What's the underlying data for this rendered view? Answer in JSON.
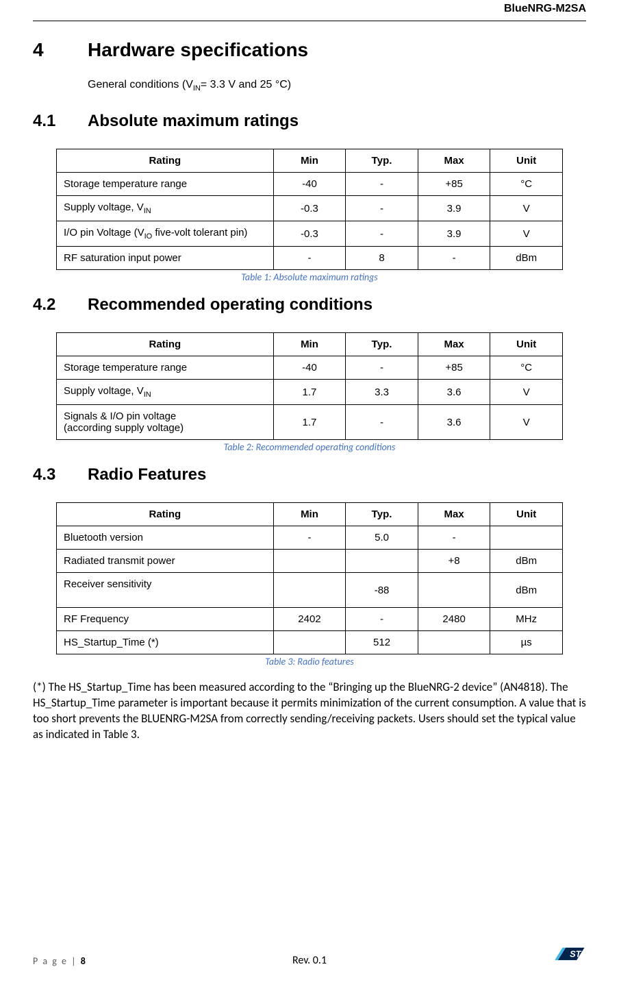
{
  "header": {
    "product": "BlueNRG-M2SA"
  },
  "section4": {
    "num": "4",
    "title": "Hardware specifications",
    "intro_prefix": "General conditions (V",
    "intro_sub": "IN",
    "intro_suffix": "= 3.3 V and 25 °C)"
  },
  "section41": {
    "num": "4.1",
    "title": "Absolute maximum ratings",
    "table": {
      "columns": [
        "Rating",
        "Min",
        "Typ.",
        "Max",
        "Unit"
      ],
      "rows": [
        {
          "rating": "Storage temperature range",
          "min": "-40",
          "typ": "-",
          "max": "+85",
          "unit": "°C"
        },
        {
          "rating_html": "Supply voltage, V<sub>IN</sub>",
          "min": "-0.3",
          "typ": "-",
          "max": "3.9",
          "unit": "V"
        },
        {
          "rating_html": "I/O pin Voltage (V<sub>IO</sub> five-volt tolerant pin)",
          "min": "-0.3",
          "typ": "-",
          "max": "3.9",
          "unit": "V"
        },
        {
          "rating": "RF saturation input power",
          "min": "-",
          "typ": "8",
          "max": "-",
          "unit": "dBm"
        }
      ],
      "caption": "Table 1: Absolute maximum ratings"
    }
  },
  "section42": {
    "num": "4.2",
    "title": "Recommended operating conditions",
    "table": {
      "columns": [
        "Rating",
        "Min",
        "Typ.",
        "Max",
        "Unit"
      ],
      "rows": [
        {
          "rating": "Storage temperature range",
          "min": "-40",
          "typ": "-",
          "max": "+85",
          "unit": "°C"
        },
        {
          "rating_html": "Supply voltage, V<sub>IN</sub>",
          "min": "1.7",
          "typ": "3.3",
          "max": "3.6",
          "unit": "V"
        },
        {
          "rating_html": "Signals & I/O pin voltage<br>(according supply voltage)",
          "min": "1.7",
          "typ": "-",
          "max": "3.6",
          "unit": "V"
        }
      ],
      "caption": "Table 2: Recommended operating conditions"
    }
  },
  "section43": {
    "num": "4.3",
    "title": "Radio Features",
    "table": {
      "columns": [
        "Rating",
        "Min",
        "Typ.",
        "Max",
        "Unit"
      ],
      "rows": [
        {
          "rating": "Bluetooth version",
          "min": "-",
          "typ": "5.0",
          "max": "-",
          "unit": ""
        },
        {
          "rating": "Radiated transmit power",
          "min": "",
          "typ": "",
          "max": "+8",
          "unit": "dBm"
        },
        {
          "rating_html": "Receiver sensitivity<br>&nbsp;",
          "min": "",
          "typ": "-88",
          "max": "",
          "unit": "dBm"
        },
        {
          "rating": "RF Frequency",
          "min": "2402",
          "typ": "-",
          "max": "2480",
          "unit": "MHz"
        },
        {
          "rating": "HS_Startup_Time (*)",
          "min": "",
          "typ": "512",
          "max": "",
          "unit": "µs"
        }
      ],
      "caption": "Table 3: Radio features"
    }
  },
  "footnote": "(*) The HS_Startup_Time has been measured according to the “Bringing up the BlueNRG-2 device” (AN4818). The HS_Startup_Time parameter is important because it permits minimization of the current consumption. A value that is too short prevents the BLUENRG-M2SA from correctly sending/receiving packets. Users should set the typical value as indicated in Table 3.",
  "footer": {
    "page_label": "P a g e",
    "page_sep": "  | ",
    "page_num": "8",
    "rev": "Rev. 0.1"
  },
  "style": {
    "caption_color": "#4472c4",
    "logo_blue": "#03234b",
    "logo_light": "#3cb4e6"
  }
}
